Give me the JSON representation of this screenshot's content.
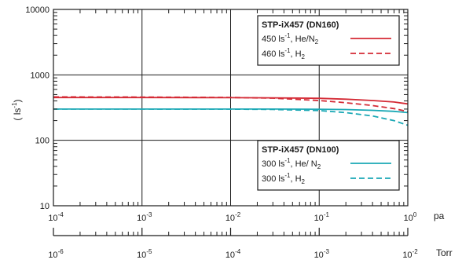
{
  "chart_data": {
    "type": "line",
    "x_scale": "log",
    "y_scale": "log",
    "x_range_pa": [
      0.0001,
      1
    ],
    "y_range": [
      10,
      10000
    ],
    "grid": true,
    "ylabel": {
      "pre": "( ls",
      "sup": "-1",
      "post": ")"
    },
    "x_unit_primary": "pa",
    "x_unit_secondary": "Torr",
    "x_ticks_primary": [
      {
        "base": "10",
        "exp": "-4",
        "value": 0.0001
      },
      {
        "base": "10",
        "exp": "-3",
        "value": 0.001
      },
      {
        "base": "10",
        "exp": "-2",
        "value": 0.01
      },
      {
        "base": "10",
        "exp": "-1",
        "value": 0.1
      },
      {
        "base": "10",
        "exp": "0",
        "value": 1
      }
    ],
    "x_ticks_secondary": [
      {
        "base": "10",
        "exp": "-6",
        "value": 1e-06
      },
      {
        "base": "10",
        "exp": "-5",
        "value": 1e-05
      },
      {
        "base": "10",
        "exp": "-4",
        "value": 0.0001
      },
      {
        "base": "10",
        "exp": "-3",
        "value": 0.001
      },
      {
        "base": "10",
        "exp": "-2",
        "value": 0.01
      }
    ],
    "secondary_range": [
      1e-06,
      0.01
    ],
    "y_ticks": [
      {
        "label": "10",
        "value": 10
      },
      {
        "label": "100",
        "value": 100
      },
      {
        "label": "1000",
        "value": 1000
      },
      {
        "label": "10000",
        "value": 10000
      }
    ],
    "legends": [
      {
        "title": "STP-iX457 (DN160)",
        "placement": "top-right",
        "entries": [
          {
            "pre": "450 ls",
            "sup": "-1",
            "mid": ", He/N",
            "sub": "2",
            "series": 0
          },
          {
            "pre": "460 ls",
            "sup": "-1",
            "mid": ", H",
            "sub": "2",
            "series": 1
          }
        ]
      },
      {
        "title": "STP-iX457 (DN100)",
        "placement": "bottom-right",
        "entries": [
          {
            "pre": "300 ls",
            "sup": "-1",
            "mid": ", He/ N",
            "sub": "2",
            "series": 2
          },
          {
            "pre": "300 ls",
            "sup": "-1",
            "mid": ", H",
            "sub": "2",
            "series": 3
          }
        ]
      }
    ],
    "series": [
      {
        "color": "#d42a35",
        "dash": "solid",
        "x": [
          0.0001,
          0.001,
          0.01,
          0.03,
          0.1,
          0.2,
          0.4,
          0.7,
          1.0
        ],
        "y": [
          450,
          450,
          448,
          446,
          438,
          425,
          405,
          385,
          360
        ]
      },
      {
        "color": "#d42a35",
        "dash": "dashed",
        "x": [
          0.0001,
          0.001,
          0.01,
          0.03,
          0.1,
          0.2,
          0.4,
          0.7,
          1.0
        ],
        "y": [
          460,
          458,
          452,
          440,
          405,
          375,
          340,
          305,
          275
        ]
      },
      {
        "color": "#1aa8b5",
        "dash": "solid",
        "x": [
          0.0001,
          0.001,
          0.01,
          0.03,
          0.1,
          0.2,
          0.4,
          0.7,
          1.0
        ],
        "y": [
          300,
          300,
          300,
          300,
          298,
          295,
          287,
          277,
          265
        ]
      },
      {
        "color": "#1aa8b5",
        "dash": "dashed",
        "x": [
          0.0001,
          0.001,
          0.01,
          0.03,
          0.1,
          0.2,
          0.4,
          0.7,
          1.0
        ],
        "y": [
          300,
          300,
          299,
          296,
          285,
          265,
          235,
          200,
          170
        ]
      }
    ]
  }
}
